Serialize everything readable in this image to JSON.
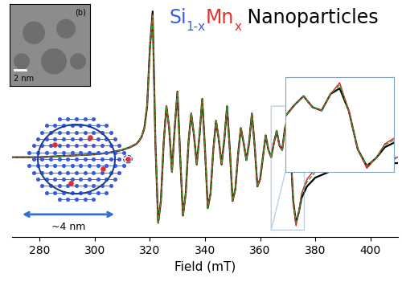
{
  "chart_data": {
    "type": "line",
    "title_parts": [
      {
        "text": "Si",
        "color": "#3a5fe5",
        "subscript": false
      },
      {
        "text": "1-x",
        "color": "#3a5fe5",
        "subscript": true
      },
      {
        "text": "Mn",
        "color": "#e0302a",
        "subscript": false
      },
      {
        "text": "x",
        "color": "#e0302a",
        "subscript": true
      },
      {
        "text": " Nanoparticles",
        "color": "#000000",
        "subscript": false
      }
    ],
    "x_label": "Field (mT)",
    "x": [
      270,
      280,
      290,
      300,
      305,
      310,
      313,
      315,
      316,
      317,
      318,
      319,
      320,
      321,
      322,
      323,
      324,
      325,
      326,
      327,
      328,
      329,
      330,
      331,
      332,
      333,
      334,
      335,
      336,
      337,
      338,
      339,
      340,
      341,
      342,
      343,
      344,
      345,
      346,
      347,
      348,
      349,
      350,
      351,
      352,
      353,
      354,
      355,
      356,
      357,
      358,
      359,
      360,
      361,
      362,
      363,
      364,
      365,
      366,
      367,
      368,
      369,
      370,
      371,
      372,
      373,
      374,
      375,
      377,
      380,
      385,
      390,
      400,
      410
    ],
    "series": [
      {
        "color": "#000000",
        "line_style": "solid",
        "values": [
          0.0,
          0.0,
          0.01,
          0.02,
          0.03,
          0.05,
          0.07,
          0.09,
          0.11,
          0.14,
          0.2,
          0.35,
          0.75,
          1.0,
          0.1,
          -0.45,
          -0.3,
          0.1,
          0.35,
          0.2,
          -0.1,
          0.2,
          0.45,
          0.0,
          -0.4,
          -0.25,
          0.1,
          0.3,
          0.15,
          -0.05,
          0.15,
          0.4,
          0.05,
          -0.35,
          -0.25,
          0.05,
          0.25,
          0.12,
          -0.05,
          0.12,
          0.35,
          0.05,
          -0.3,
          -0.22,
          0.02,
          0.2,
          0.1,
          -0.02,
          0.1,
          0.3,
          0.08,
          -0.2,
          -0.15,
          0.0,
          0.15,
          0.05,
          0.0,
          0.1,
          0.18,
          0.08,
          0.05,
          0.2,
          0.25,
          0.05,
          -0.3,
          -0.45,
          -0.38,
          -0.28,
          -0.2,
          -0.14,
          -0.1,
          -0.07,
          -0.05,
          -0.04
        ]
      },
      {
        "color": "#e31a1c",
        "line_style": "solid",
        "values": [
          0.0,
          0.0,
          0.01,
          0.02,
          0.03,
          0.05,
          0.07,
          0.09,
          0.11,
          0.14,
          0.2,
          0.35,
          0.75,
          0.98,
          0.1,
          -0.45,
          -0.3,
          0.1,
          0.35,
          0.2,
          -0.1,
          0.2,
          0.45,
          0.0,
          -0.4,
          -0.25,
          0.1,
          0.3,
          0.15,
          -0.05,
          0.15,
          0.4,
          0.05,
          -0.35,
          -0.25,
          0.05,
          0.25,
          0.12,
          -0.05,
          0.12,
          0.35,
          0.05,
          -0.3,
          -0.22,
          0.02,
          0.2,
          0.1,
          -0.02,
          0.1,
          0.3,
          0.08,
          -0.2,
          -0.15,
          0.0,
          0.15,
          0.05,
          0.0,
          0.1,
          0.18,
          0.08,
          0.05,
          0.2,
          0.3,
          0.05,
          -0.3,
          -0.47,
          -0.38,
          -0.25,
          -0.15,
          -0.08,
          -0.04,
          -0.02,
          -0.01,
          0.0
        ]
      },
      {
        "color": "#33a02c",
        "line_style": "dashed",
        "values": [
          0.0,
          0.0,
          0.01,
          0.02,
          0.03,
          0.05,
          0.07,
          0.09,
          0.11,
          0.14,
          0.2,
          0.35,
          0.75,
          0.97,
          0.1,
          -0.45,
          -0.3,
          0.1,
          0.35,
          0.2,
          -0.1,
          0.2,
          0.45,
          0.0,
          -0.4,
          -0.25,
          0.1,
          0.3,
          0.15,
          -0.05,
          0.15,
          0.4,
          0.05,
          -0.35,
          -0.25,
          0.05,
          0.25,
          0.12,
          -0.05,
          0.12,
          0.35,
          0.05,
          -0.3,
          -0.22,
          0.02,
          0.2,
          0.1,
          -0.02,
          0.1,
          0.3,
          0.08,
          -0.2,
          -0.15,
          0.0,
          0.15,
          0.05,
          0.0,
          0.1,
          0.18,
          0.08,
          0.05,
          0.2,
          0.28,
          0.05,
          -0.3,
          -0.45,
          -0.38,
          -0.26,
          -0.17,
          -0.1,
          -0.06,
          -0.04,
          -0.02,
          -0.01
        ]
      }
    ],
    "xlim": [
      270,
      410
    ],
    "xticks": [
      280,
      300,
      320,
      340,
      360,
      380,
      400
    ],
    "ylim": [
      -0.55,
      1.02
    ],
    "tick_labels": "x",
    "grid": false,
    "inset": {
      "xlim": [
        364,
        376
      ],
      "ylim": [
        -0.5,
        0.35
      ]
    },
    "tem_inset": {
      "scale_label": "2 nm",
      "panel_label": "(b)"
    },
    "particle_diagram": {
      "size_label": "~4 nm"
    }
  }
}
